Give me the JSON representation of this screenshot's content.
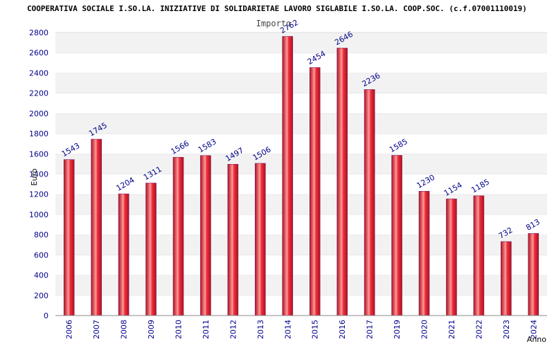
{
  "chart_data": {
    "type": "bar",
    "title": "COOPERATIVA SOCIALE I.SO.LA. INIZIATIVE DI SOLIDARIETAE LAVORO SIGLABILE I.SO.LA. COOP.SOC. (c.f.07001110019)",
    "series_name": "Importo",
    "xlabel": "Anno",
    "ylabel": "Euro",
    "ylim": [
      0,
      2800
    ],
    "ytick_step": 200,
    "grid": true,
    "categories": [
      "2006",
      "2007",
      "2008",
      "2009",
      "2010",
      "2011",
      "2012",
      "2013",
      "2014",
      "2015",
      "2016",
      "2017",
      "2019",
      "2020",
      "2021",
      "2022",
      "2023",
      "2024"
    ],
    "values": [
      1543,
      1745,
      1204,
      1311,
      1566,
      1583,
      1497,
      1506,
      2762,
      2454,
      2646,
      2236,
      1585,
      1230,
      1154,
      1185,
      732,
      813
    ],
    "bar_color": "#e8202a"
  }
}
